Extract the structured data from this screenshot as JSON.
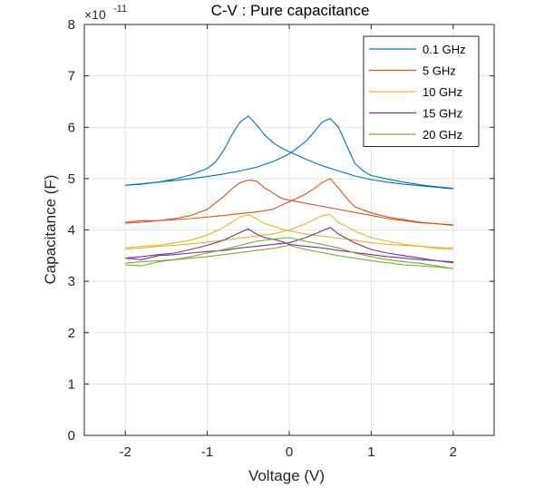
{
  "chart_data": {
    "type": "line",
    "title": "C-V : Pure capacitance",
    "xlabel": "Voltage (V)",
    "ylabel": "Capacitance (F)",
    "y_multiplier_base": "×10",
    "y_multiplier_exp": "-11",
    "xlim": [
      -2.5,
      2.5
    ],
    "ylim": [
      0,
      8
    ],
    "x_ticks": [
      -2,
      -1,
      0,
      1,
      2
    ],
    "x_tick_labels": [
      "-2",
      "-1",
      "0",
      "1",
      "2"
    ],
    "y_ticks": [
      0,
      1,
      2,
      3,
      4,
      5,
      6,
      7,
      8
    ],
    "y_tick_labels": [
      "0",
      "1",
      "2",
      "3",
      "4",
      "5",
      "6",
      "7",
      "8"
    ],
    "grid": true,
    "legend_position": "top-right",
    "series": [
      {
        "name": "0.1 GHz",
        "color": "#0072BD",
        "forward": {
          "x": [
            -2.0,
            -1.8,
            -1.6,
            -1.4,
            -1.2,
            -1.0,
            -0.9,
            -0.8,
            -0.7,
            -0.6,
            -0.5,
            -0.4,
            -0.3,
            -0.2,
            -0.1,
            0.0,
            0.2,
            0.4,
            0.6,
            0.8,
            1.0,
            1.2,
            1.4,
            1.6,
            1.8,
            2.0
          ],
          "y": [
            4.87,
            4.89,
            4.93,
            4.99,
            5.07,
            5.2,
            5.32,
            5.55,
            5.85,
            6.1,
            6.22,
            6.05,
            5.85,
            5.7,
            5.6,
            5.52,
            5.38,
            5.25,
            5.15,
            5.05,
            4.98,
            4.93,
            4.89,
            4.86,
            4.83,
            4.8
          ]
        },
        "reverse": {
          "x": [
            -2.0,
            -1.8,
            -1.6,
            -1.4,
            -1.2,
            -1.0,
            -0.8,
            -0.6,
            -0.4,
            -0.2,
            0.0,
            0.1,
            0.2,
            0.3,
            0.4,
            0.5,
            0.6,
            0.7,
            0.8,
            0.9,
            1.0,
            1.2,
            1.4,
            1.6,
            1.8,
            2.0
          ],
          "y": [
            4.87,
            4.9,
            4.93,
            4.96,
            5.0,
            5.04,
            5.09,
            5.15,
            5.22,
            5.33,
            5.48,
            5.6,
            5.72,
            5.9,
            6.1,
            6.17,
            6.0,
            5.65,
            5.3,
            5.15,
            5.06,
            4.99,
            4.93,
            4.88,
            4.84,
            4.81
          ]
        }
      },
      {
        "name": "5 GHz",
        "color": "#D95319",
        "forward": {
          "x": [
            -2.0,
            -1.8,
            -1.6,
            -1.4,
            -1.2,
            -1.0,
            -0.8,
            -0.7,
            -0.6,
            -0.5,
            -0.4,
            -0.3,
            -0.2,
            -0.1,
            0.0,
            0.2,
            0.4,
            0.6,
            0.8,
            1.0,
            1.2,
            1.4,
            1.6,
            1.8,
            2.0
          ],
          "y": [
            4.15,
            4.18,
            4.18,
            4.22,
            4.28,
            4.4,
            4.65,
            4.8,
            4.92,
            4.97,
            4.95,
            4.82,
            4.72,
            4.62,
            4.58,
            4.52,
            4.46,
            4.4,
            4.34,
            4.28,
            4.22,
            4.18,
            4.14,
            4.12,
            4.1
          ]
        },
        "reverse": {
          "x": [
            -2.0,
            -1.8,
            -1.6,
            -1.4,
            -1.2,
            -1.0,
            -0.8,
            -0.6,
            -0.4,
            -0.2,
            0.0,
            0.1,
            0.2,
            0.3,
            0.4,
            0.5,
            0.6,
            0.7,
            0.8,
            1.0,
            1.2,
            1.4,
            1.6,
            1.8,
            2.0
          ],
          "y": [
            4.13,
            4.15,
            4.18,
            4.2,
            4.22,
            4.25,
            4.28,
            4.32,
            4.35,
            4.4,
            4.55,
            4.62,
            4.7,
            4.8,
            4.92,
            5.0,
            4.82,
            4.62,
            4.45,
            4.33,
            4.25,
            4.2,
            4.15,
            4.12,
            4.09
          ]
        }
      },
      {
        "name": "10 GHz",
        "color": "#EDB120",
        "forward": {
          "x": [
            -2.0,
            -1.8,
            -1.6,
            -1.4,
            -1.2,
            -1.0,
            -0.8,
            -0.7,
            -0.6,
            -0.5,
            -0.4,
            -0.3,
            -0.2,
            -0.1,
            0.0,
            0.2,
            0.4,
            0.6,
            0.8,
            1.0,
            1.2,
            1.4,
            1.6,
            1.8,
            2.0
          ],
          "y": [
            3.65,
            3.68,
            3.7,
            3.75,
            3.8,
            3.9,
            4.05,
            4.15,
            4.25,
            4.3,
            4.22,
            4.12,
            4.08,
            4.02,
            3.98,
            3.92,
            3.88,
            3.84,
            3.8,
            3.75,
            3.72,
            3.7,
            3.68,
            3.66,
            3.65
          ]
        },
        "reverse": {
          "x": [
            -2.0,
            -1.8,
            -1.6,
            -1.4,
            -1.2,
            -1.0,
            -0.8,
            -0.6,
            -0.4,
            -0.2,
            0.0,
            0.2,
            0.4,
            0.5,
            0.6,
            0.8,
            1.0,
            1.2,
            1.4,
            1.6,
            1.8,
            2.0
          ],
          "y": [
            3.62,
            3.65,
            3.68,
            3.7,
            3.73,
            3.76,
            3.8,
            3.84,
            3.88,
            3.92,
            4.0,
            4.12,
            4.28,
            4.3,
            4.15,
            3.98,
            3.85,
            3.78,
            3.72,
            3.68,
            3.64,
            3.62
          ]
        }
      },
      {
        "name": "15 GHz",
        "color": "#7E2F8E",
        "forward": {
          "x": [
            -2.0,
            -1.8,
            -1.6,
            -1.4,
            -1.2,
            -1.0,
            -0.8,
            -0.6,
            -0.5,
            -0.4,
            -0.3,
            -0.2,
            -0.1,
            0.0,
            0.2,
            0.4,
            0.6,
            0.8,
            1.0,
            1.2,
            1.4,
            1.6,
            1.8,
            2.0
          ],
          "y": [
            3.45,
            3.48,
            3.52,
            3.55,
            3.62,
            3.7,
            3.8,
            3.95,
            4.02,
            3.92,
            3.85,
            3.82,
            3.78,
            3.72,
            3.68,
            3.65,
            3.6,
            3.56,
            3.52,
            3.48,
            3.45,
            3.42,
            3.4,
            3.38
          ]
        },
        "reverse": {
          "x": [
            -2.0,
            -1.8,
            -1.6,
            -1.4,
            -1.2,
            -1.0,
            -0.8,
            -0.6,
            -0.4,
            -0.2,
            0.0,
            0.2,
            0.4,
            0.5,
            0.6,
            0.8,
            1.0,
            1.2,
            1.4,
            1.6,
            1.8,
            2.0
          ],
          "y": [
            3.45,
            3.42,
            3.5,
            3.52,
            3.55,
            3.58,
            3.6,
            3.65,
            3.68,
            3.72,
            3.75,
            3.85,
            3.98,
            4.05,
            3.92,
            3.75,
            3.62,
            3.55,
            3.5,
            3.45,
            3.4,
            3.36
          ]
        }
      },
      {
        "name": "20 GHz",
        "color": "#77AC30",
        "forward": {
          "x": [
            -2.0,
            -1.8,
            -1.6,
            -1.4,
            -1.2,
            -1.0,
            -0.8,
            -0.6,
            -0.4,
            -0.2,
            0.0,
            0.2,
            0.4,
            0.6,
            0.8,
            1.0,
            1.2,
            1.4,
            1.6,
            1.8,
            2.0
          ],
          "y": [
            3.35,
            3.38,
            3.4,
            3.42,
            3.45,
            3.48,
            3.52,
            3.56,
            3.6,
            3.64,
            3.7,
            3.62,
            3.56,
            3.5,
            3.45,
            3.4,
            3.36,
            3.32,
            3.3,
            3.28,
            3.25
          ]
        },
        "reverse": {
          "x": [
            -2.0,
            -1.8,
            -1.6,
            -1.4,
            -1.2,
            -1.0,
            -0.8,
            -0.6,
            -0.4,
            -0.2,
            0.0,
            0.2,
            0.4,
            0.6,
            0.8,
            1.0,
            1.2,
            1.4,
            1.6,
            1.8,
            2.0
          ],
          "y": [
            3.32,
            3.3,
            3.38,
            3.42,
            3.48,
            3.55,
            3.62,
            3.7,
            3.78,
            3.82,
            3.85,
            3.78,
            3.72,
            3.65,
            3.55,
            3.48,
            3.42,
            3.38,
            3.35,
            3.3,
            3.25
          ]
        }
      }
    ]
  }
}
